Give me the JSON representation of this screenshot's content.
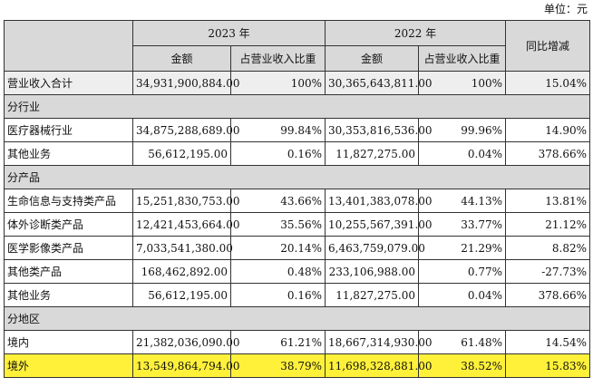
{
  "unit_label": "单位：元",
  "header": {
    "year_2023": "2023 年",
    "year_2022": "2022 年",
    "yoy": "同比增减",
    "amount": "金额",
    "ratio": "占营业收入比重"
  },
  "total": {
    "label": "营业收入合计",
    "amt_2023": "34,931,900,884.00",
    "pct_2023": "100%",
    "amt_2022": "30,365,643,811.00",
    "pct_2022": "100%",
    "yoy": "15.04%"
  },
  "sections": [
    {
      "title": "分行业",
      "rows": [
        {
          "label": "医疗器械行业",
          "amt_2023": "34,875,288,689.00",
          "pct_2023": "99.84%",
          "amt_2022": "30,353,816,536.00",
          "pct_2022": "99.96%",
          "yoy": "14.90%"
        },
        {
          "label": "其他业务",
          "amt_2023": "56,612,195.00",
          "pct_2023": "0.16%",
          "amt_2022": "11,827,275.00",
          "pct_2022": "0.04%",
          "yoy": "378.66%"
        }
      ]
    },
    {
      "title": "分产品",
      "rows": [
        {
          "label": "生命信息与支持类产品",
          "amt_2023": "15,251,830,753.00",
          "pct_2023": "43.66%",
          "amt_2022": "13,401,383,078.00",
          "pct_2022": "44.13%",
          "yoy": "13.81%"
        },
        {
          "label": "体外诊断类产品",
          "amt_2023": "12,421,453,664.00",
          "pct_2023": "35.56%",
          "amt_2022": "10,255,567,391.00",
          "pct_2022": "33.77%",
          "yoy": "21.12%"
        },
        {
          "label": "医学影像类产品",
          "amt_2023": "7,033,541,380.00",
          "pct_2023": "20.14%",
          "amt_2022": "6,463,759,079.00",
          "pct_2022": "21.29%",
          "yoy": "8.82%"
        },
        {
          "label": "其他类产品",
          "amt_2023": "168,462,892.00",
          "pct_2023": "0.48%",
          "amt_2022": "233,106,988.00",
          "pct_2022": "0.77%",
          "yoy": "-27.73%"
        },
        {
          "label": "其他业务",
          "amt_2023": "56,612,195.00",
          "pct_2023": "0.16%",
          "amt_2022": "11,827,275.00",
          "pct_2022": "0.04%",
          "yoy": "378.66%"
        }
      ]
    },
    {
      "title": "分地区",
      "rows": [
        {
          "label": "境内",
          "amt_2023": "21,382,036,090.00",
          "pct_2023": "61.21%",
          "amt_2022": "18,667,314,930.00",
          "pct_2022": "61.48%",
          "yoy": "14.54%"
        },
        {
          "label": "境外",
          "amt_2023": "13,549,864,794.00",
          "pct_2023": "38.79%",
          "amt_2022": "11,698,328,881.00",
          "pct_2022": "38.52%",
          "yoy": "15.83%",
          "highlight": true
        }
      ]
    }
  ],
  "colors": {
    "header_bg": "#d9d9d9",
    "highlight": "#fff13a",
    "border": "#333333"
  }
}
